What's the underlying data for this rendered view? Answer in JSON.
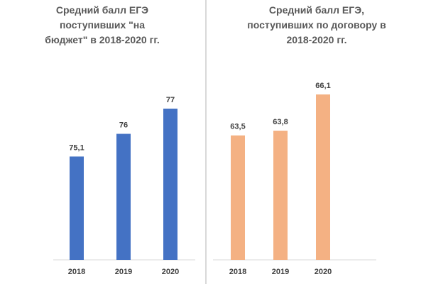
{
  "chart_data": [
    {
      "type": "bar",
      "title": "Средний балл ЕГЭ\nпоступивших \"на\nбюджет\" в 2018-2020 гг.",
      "categories": [
        "2018",
        "2019",
        "2020"
      ],
      "values": [
        75.1,
        76,
        77
      ],
      "value_labels": [
        "75,1",
        "76",
        "77"
      ],
      "color": "#4472C4",
      "ylim": [
        71,
        79
      ],
      "xlabel": "",
      "ylabel": ""
    },
    {
      "type": "bar",
      "title": "Средний балл ЕГЭ,\nпоступивших по договору в\n2018-2020 гг.",
      "categories": [
        "2018",
        "2019",
        "2020"
      ],
      "values": [
        63.5,
        63.8,
        66.1
      ],
      "value_labels": [
        "63,5",
        "63,8",
        "66,1"
      ],
      "color": "#F4B183",
      "ylim": [
        55.6,
        68.4
      ],
      "xlabel": "",
      "ylabel": ""
    }
  ],
  "colors": {
    "axis": "#d9d9d9",
    "text": "#404040",
    "title": "#595959"
  }
}
